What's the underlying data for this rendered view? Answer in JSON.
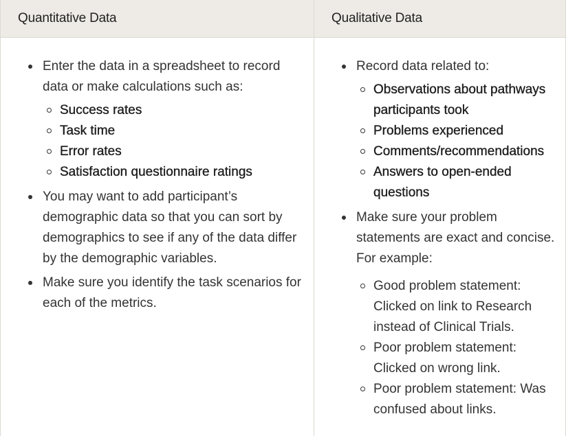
{
  "headers": {
    "left": "Quantitative Data",
    "right": "Qualitative Data"
  },
  "left": {
    "item1": "Enter the data in a spreadsheet to record data or make calculations such as:",
    "item1_sub": [
      "Success rates",
      "Task time",
      "Error rates",
      "Satisfaction questionnaire ratings"
    ],
    "item2": "You may want to add participant’s demographic data so that you can sort by demographics to see if any of the data differ by the demographic variables.",
    "item3": "Make sure you identify the task scenarios for each of the metrics."
  },
  "right": {
    "item1": "Record data related to:",
    "item1_sub": [
      "Observations about pathways participants took",
      "Problems experienced",
      "Comments/recommendations",
      "Answers to open-ended questions"
    ],
    "item2": "Make sure your problem statements are exact and concise. For example:",
    "item2_sub": [
      "Good problem statement: Clicked on link to Research instead of Clinical Trials.",
      "Poor problem statement: Clicked on wrong link.",
      "Poor problem statement: Was confused about links."
    ]
  }
}
